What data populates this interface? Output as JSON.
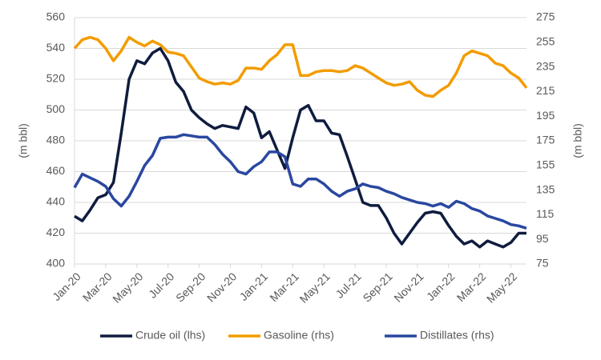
{
  "chart_data": {
    "type": "line",
    "categories": [
      "Jan-20",
      null,
      null,
      null,
      "Mar-20",
      null,
      null,
      null,
      "May-20",
      null,
      null,
      null,
      "Jul-20",
      null,
      null,
      null,
      "Sep-20",
      null,
      null,
      null,
      "Nov-20",
      null,
      null,
      null,
      "Jan-21",
      null,
      null,
      null,
      "Mar-21",
      null,
      null,
      null,
      "May-21",
      null,
      null,
      null,
      "Jul-21",
      null,
      null,
      null,
      "Sep-21",
      null,
      null,
      null,
      "Nov-21",
      null,
      null,
      null,
      "Jan-22",
      null,
      null,
      null,
      "Mar-22",
      null,
      null,
      null,
      "May-22",
      null,
      null
    ],
    "ylabel": "(m bbl)",
    "y2label": "(m bbl)",
    "ylim": [
      400,
      560
    ],
    "yticks": [
      400,
      420,
      440,
      460,
      480,
      500,
      520,
      540,
      560
    ],
    "y2lim": [
      75,
      275
    ],
    "y2ticks": [
      75,
      95,
      115,
      135,
      155,
      175,
      195,
      215,
      235,
      255,
      275
    ],
    "grid": true,
    "legend": "bottom",
    "series": [
      {
        "name": "Crude oil (lhs)",
        "color": "#0f1c3f",
        "axis": "y",
        "values": [
          431,
          428,
          435,
          443,
          445,
          453,
          485,
          520,
          532,
          530,
          537,
          540,
          532,
          518,
          512,
          500,
          495,
          491,
          488,
          490,
          489,
          488,
          502,
          498,
          482,
          486,
          474,
          462,
          482,
          500,
          503,
          493,
          493,
          485,
          484,
          470,
          455,
          440,
          438,
          438,
          430,
          420,
          413,
          420,
          427,
          433,
          434,
          433,
          425,
          418,
          413,
          415,
          411,
          415,
          413,
          411,
          414,
          420,
          420
        ]
      },
      {
        "name": "Gasoline (rhs)",
        "color": "#f29c00",
        "axis": "y2",
        "values": [
          250,
          257,
          259,
          257,
          250,
          240,
          248,
          259,
          255,
          252,
          256,
          253,
          247,
          246,
          244,
          235,
          226,
          223,
          221,
          222,
          221,
          224,
          234,
          234,
          233,
          240,
          245,
          253,
          253,
          228,
          228,
          231,
          232,
          232,
          231,
          232,
          236,
          234,
          230,
          226,
          222,
          220,
          221,
          223,
          216,
          212,
          211,
          216,
          220,
          230,
          244,
          248,
          246,
          244,
          238,
          236,
          230,
          226,
          218
        ]
      },
      {
        "name": "Distillates (rhs)",
        "color": "#2a47a0",
        "axis": "y2",
        "values": [
          137,
          148,
          145,
          142,
          138,
          128,
          122,
          130,
          142,
          155,
          163,
          177,
          178,
          178,
          180,
          179,
          178,
          178,
          172,
          164,
          158,
          150,
          148,
          154,
          158,
          166,
          166,
          162,
          140,
          138,
          144,
          144,
          140,
          134,
          130,
          134,
          136,
          140,
          138,
          137,
          134,
          132,
          129,
          127,
          125,
          124,
          122,
          124,
          121,
          126,
          124,
          120,
          118,
          114,
          112,
          110,
          107,
          106,
          104
        ]
      }
    ]
  }
}
